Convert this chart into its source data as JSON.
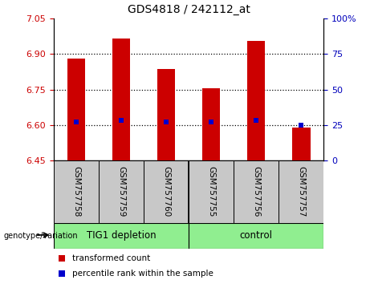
{
  "title": "GDS4818 / 242112_at",
  "categories": [
    "GSM757758",
    "GSM757759",
    "GSM757760",
    "GSM757755",
    "GSM757756",
    "GSM757757"
  ],
  "bar_values": [
    6.88,
    6.965,
    6.835,
    6.755,
    6.955,
    6.59
  ],
  "bar_baseline": 6.45,
  "blue_markers": [
    6.612,
    6.618,
    6.612,
    6.612,
    6.618,
    6.6
  ],
  "bar_color": "#cc0000",
  "blue_color": "#0000cc",
  "ylim_left": [
    6.45,
    7.05
  ],
  "ylim_right": [
    0,
    100
  ],
  "yticks_left": [
    6.45,
    6.6,
    6.75,
    6.9,
    7.05
  ],
  "yticks_right": [
    0,
    25,
    50,
    75,
    100
  ],
  "hlines": [
    6.9,
    6.75,
    6.6
  ],
  "group_color": "#90ee90",
  "group_labels": [
    "TIG1 depletion",
    "control"
  ],
  "bar_width": 0.4,
  "legend_labels": [
    "transformed count",
    "percentile rank within the sample"
  ],
  "legend_colors": [
    "#cc0000",
    "#0000cc"
  ],
  "genotype_label": "genotype/variation",
  "background_color": "#ffffff",
  "plot_bg_color": "#ffffff",
  "label_bg_color": "#c8c8c8",
  "tick_color_left": "#cc0000",
  "tick_color_right": "#0000bb",
  "title_fontsize": 10,
  "tick_fontsize": 8,
  "label_fontsize": 7.5,
  "group_fontsize": 8.5,
  "legend_fontsize": 7.5
}
